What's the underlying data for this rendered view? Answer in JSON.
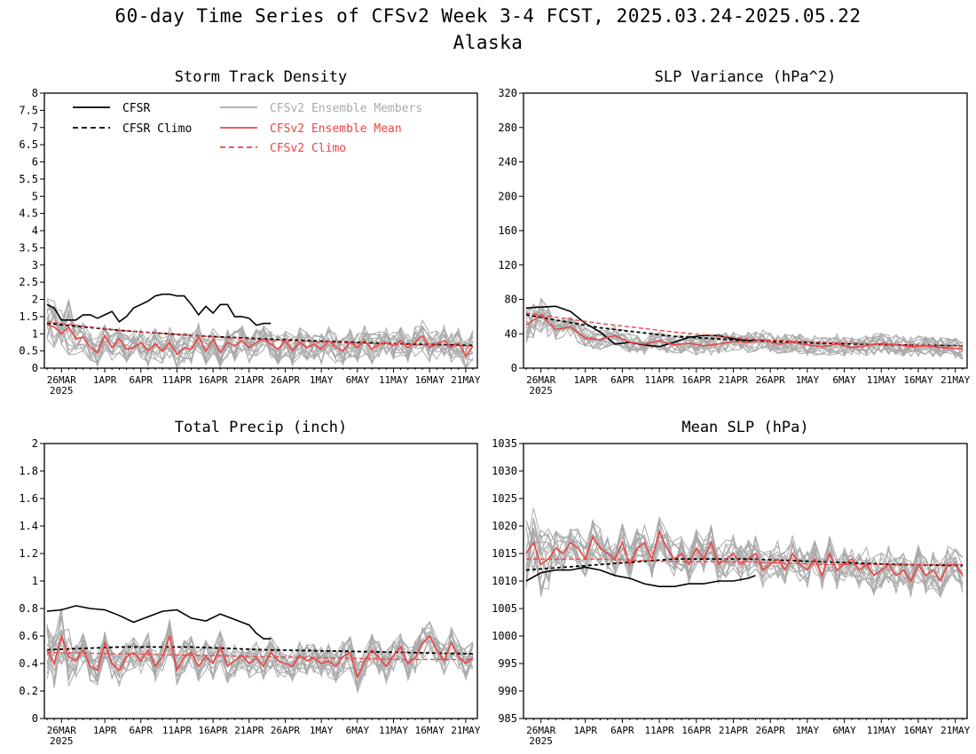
{
  "title": "60-day Time Series of CFSv2 Week 3-4 FCST, 2025.03.24-2025.05.22",
  "subtitle": "Alaska",
  "colors": {
    "cfsr": "#000000",
    "ens_member": "#aaaaaa",
    "ens_mean": "#ee4444",
    "cfsv2_climo": "#ee4444"
  },
  "legend": [
    {
      "label": "CFSR",
      "style": "solid",
      "color": "#000000"
    },
    {
      "label": "CFSR Climo",
      "style": "dashed",
      "color": "#000000"
    },
    {
      "label": "CFSv2 Ensemble Members",
      "style": "solid",
      "color": "#aaaaaa"
    },
    {
      "label": "CFSv2 Ensemble Mean",
      "style": "solid",
      "color": "#ee4444"
    },
    {
      "label": "CFSv2 Climo",
      "style": "dashed",
      "color": "#ee4444"
    }
  ],
  "x_ticks": [
    "26MAR",
    "1APR",
    "6APR",
    "11APR",
    "16APR",
    "21APR",
    "26APR",
    "1MAY",
    "6MAY",
    "11MAY",
    "16MAY",
    "21MAY"
  ],
  "x_tick_days": [
    2,
    8,
    13,
    18,
    23,
    28,
    33,
    38,
    43,
    48,
    53,
    58
  ],
  "x_year_label": "2025",
  "chart_data": [
    {
      "type": "line",
      "title": "Storm Track Density",
      "ylim": [
        0,
        8
      ],
      "yticks": [
        "0",
        "0.5",
        "1",
        "1.5",
        "2",
        "2.5",
        "3",
        "3.5",
        "4",
        "4.5",
        "5",
        "5.5",
        "6",
        "6.5",
        "7",
        "7.5",
        "8"
      ],
      "ytick_values": [
        0,
        0.5,
        1,
        1.5,
        2,
        2.5,
        3,
        3.5,
        4,
        4.5,
        5,
        5.5,
        6,
        6.5,
        7,
        7.5,
        8
      ],
      "series": [
        {
          "name": "CFSR",
          "x": [
            0,
            1,
            2,
            3,
            4,
            5,
            6,
            7,
            8,
            9,
            10,
            11,
            12,
            13,
            14,
            15,
            16,
            17,
            18,
            19,
            20,
            21,
            22,
            23,
            24,
            25,
            26,
            27,
            28,
            29,
            30,
            31
          ],
          "values": [
            1.85,
            1.75,
            1.4,
            1.4,
            1.4,
            1.55,
            1.55,
            1.45,
            1.55,
            1.65,
            1.35,
            1.5,
            1.75,
            1.85,
            1.95,
            2.1,
            2.15,
            2.15,
            2.1,
            2.1,
            1.85,
            1.55,
            1.8,
            1.6,
            1.85,
            1.85,
            1.5,
            1.5,
            1.45,
            1.25,
            1.3,
            1.3
          ]
        },
        {
          "name": "CFSR Climo",
          "x": [
            0,
            10,
            20,
            30,
            40,
            50,
            59
          ],
          "values": [
            1.3,
            1.1,
            0.95,
            0.85,
            0.77,
            0.7,
            0.66
          ]
        },
        {
          "name": "CFSv2 Ensemble Mean",
          "x": [
            0,
            1,
            2,
            3,
            4,
            5,
            6,
            7,
            8,
            9,
            10,
            11,
            12,
            13,
            14,
            15,
            16,
            17,
            18,
            19,
            20,
            21,
            22,
            23,
            24,
            25,
            26,
            27,
            28,
            29,
            30,
            31,
            32,
            33,
            34,
            35,
            36,
            37,
            38,
            39,
            40,
            41,
            42,
            43,
            44,
            45,
            46,
            47,
            48,
            49,
            50,
            51,
            52,
            53,
            54,
            55,
            56,
            57,
            58,
            59
          ],
          "values": [
            1.25,
            1.2,
            1.0,
            1.2,
            0.85,
            0.9,
            0.6,
            0.45,
            0.95,
            0.6,
            0.85,
            0.55,
            0.6,
            0.75,
            0.5,
            0.7,
            0.5,
            0.75,
            0.4,
            0.6,
            0.55,
            0.9,
            0.5,
            0.85,
            0.45,
            0.75,
            0.65,
            0.8,
            0.6,
            0.75,
            0.85,
            0.7,
            0.55,
            0.8,
            0.5,
            0.75,
            0.6,
            0.7,
            0.55,
            0.8,
            0.6,
            0.5,
            0.75,
            0.6,
            0.8,
            0.55,
            0.7,
            0.75,
            0.65,
            0.8,
            0.6,
            0.75,
            0.95,
            0.6,
            0.7,
            0.8,
            0.6,
            0.75,
            0.35,
            0.65
          ]
        },
        {
          "name": "CFSv2 Climo",
          "x": [
            0,
            10,
            20,
            30,
            40,
            50,
            59
          ],
          "values": [
            1.35,
            1.1,
            0.95,
            0.82,
            0.74,
            0.68,
            0.64
          ]
        }
      ]
    },
    {
      "type": "line",
      "title": "SLP Variance (hPa^2)",
      "ylim": [
        0,
        320
      ],
      "yticks": [
        "0",
        "40",
        "80",
        "120",
        "160",
        "200",
        "240",
        "280",
        "320"
      ],
      "ytick_values": [
        0,
        40,
        80,
        120,
        160,
        200,
        240,
        280,
        320
      ],
      "series": [
        {
          "name": "CFSR",
          "x": [
            0,
            2,
            4,
            6,
            8,
            10,
            12,
            14,
            16,
            18,
            20,
            22,
            24,
            26,
            28,
            30,
            31
          ],
          "values": [
            70,
            71,
            72,
            66,
            52,
            42,
            28,
            30,
            27,
            25,
            30,
            36,
            38,
            38,
            34,
            32,
            33
          ]
        },
        {
          "name": "CFSR Climo",
          "x": [
            0,
            10,
            20,
            30,
            40,
            50,
            59
          ],
          "values": [
            62,
            47,
            37,
            32,
            29,
            27,
            26
          ]
        },
        {
          "name": "CFSv2 Ensemble Mean",
          "x": [
            0,
            2,
            4,
            6,
            8,
            10,
            12,
            14,
            16,
            18,
            20,
            22,
            24,
            26,
            28,
            30,
            32,
            34,
            36,
            38,
            40,
            42,
            44,
            46,
            48,
            50,
            52,
            54,
            56,
            58,
            59
          ],
          "values": [
            50,
            62,
            45,
            48,
            35,
            33,
            38,
            30,
            28,
            32,
            27,
            29,
            26,
            28,
            31,
            30,
            33,
            28,
            30,
            27,
            25,
            28,
            24,
            26,
            29,
            27,
            25,
            26,
            24,
            23,
            22
          ]
        },
        {
          "name": "CFSv2 Climo",
          "x": [
            0,
            10,
            20,
            30,
            40,
            50,
            59
          ],
          "values": [
            64,
            52,
            42,
            34,
            30,
            27,
            26
          ]
        }
      ]
    },
    {
      "type": "line",
      "title": "Total Precip (inch)",
      "ylim": [
        0,
        2
      ],
      "yticks": [
        "0",
        "0.2",
        "0.4",
        "0.6",
        "0.8",
        "1",
        "1.2",
        "1.4",
        "1.6",
        "1.8",
        "2"
      ],
      "ytick_values": [
        0,
        0.2,
        0.4,
        0.6,
        0.8,
        1,
        1.2,
        1.4,
        1.6,
        1.8,
        2
      ],
      "series": [
        {
          "name": "CFSR",
          "x": [
            0,
            2,
            4,
            6,
            8,
            10,
            12,
            14,
            16,
            18,
            20,
            22,
            24,
            26,
            28,
            29,
            30,
            31
          ],
          "values": [
            0.78,
            0.79,
            0.82,
            0.8,
            0.79,
            0.75,
            0.7,
            0.74,
            0.78,
            0.79,
            0.73,
            0.71,
            0.76,
            0.72,
            0.68,
            0.62,
            0.58,
            0.58
          ]
        },
        {
          "name": "CFSR Climo",
          "x": [
            0,
            10,
            20,
            30,
            40,
            50,
            59
          ],
          "values": [
            0.5,
            0.52,
            0.52,
            0.5,
            0.49,
            0.48,
            0.47
          ]
        },
        {
          "name": "CFSv2 Ensemble Mean",
          "x": [
            0,
            1,
            2,
            3,
            4,
            5,
            6,
            7,
            8,
            9,
            10,
            11,
            12,
            13,
            14,
            15,
            16,
            17,
            18,
            19,
            20,
            21,
            22,
            23,
            24,
            25,
            26,
            27,
            28,
            29,
            30,
            31,
            32,
            33,
            34,
            35,
            36,
            37,
            38,
            39,
            40,
            41,
            42,
            43,
            44,
            45,
            46,
            47,
            48,
            49,
            50,
            51,
            52,
            53,
            54,
            55,
            56,
            57,
            58,
            59
          ],
          "values": [
            0.5,
            0.4,
            0.6,
            0.45,
            0.42,
            0.5,
            0.38,
            0.35,
            0.55,
            0.4,
            0.35,
            0.45,
            0.48,
            0.42,
            0.5,
            0.38,
            0.45,
            0.6,
            0.35,
            0.45,
            0.48,
            0.38,
            0.45,
            0.4,
            0.52,
            0.38,
            0.42,
            0.46,
            0.4,
            0.44,
            0.38,
            0.48,
            0.42,
            0.4,
            0.38,
            0.46,
            0.42,
            0.44,
            0.4,
            0.42,
            0.38,
            0.45,
            0.48,
            0.3,
            0.42,
            0.5,
            0.44,
            0.38,
            0.46,
            0.52,
            0.4,
            0.44,
            0.55,
            0.6,
            0.5,
            0.42,
            0.55,
            0.45,
            0.4,
            0.44
          ]
        },
        {
          "name": "CFSv2 Climo",
          "x": [
            0,
            10,
            20,
            30,
            40,
            50,
            59
          ],
          "values": [
            0.48,
            0.47,
            0.46,
            0.45,
            0.44,
            0.43,
            0.43
          ]
        }
      ]
    },
    {
      "type": "line",
      "title": "Mean SLP (hPa)",
      "ylim": [
        985,
        1035
      ],
      "yticks": [
        "985",
        "990",
        "995",
        "1000",
        "1005",
        "1010",
        "1015",
        "1020",
        "1025",
        "1030",
        "1035"
      ],
      "ytick_values": [
        985,
        990,
        995,
        1000,
        1005,
        1010,
        1015,
        1020,
        1025,
        1030,
        1035
      ],
      "series": [
        {
          "name": "CFSR",
          "x": [
            0,
            2,
            4,
            6,
            8,
            10,
            12,
            14,
            16,
            18,
            20,
            22,
            24,
            26,
            28,
            30,
            31
          ],
          "values": [
            1010,
            1011.5,
            1012,
            1012,
            1012.5,
            1012,
            1011,
            1010.5,
            1009.5,
            1009,
            1009,
            1009.5,
            1009.5,
            1010,
            1010,
            1010.5,
            1011
          ]
        },
        {
          "name": "CFSR Climo",
          "x": [
            0,
            10,
            20,
            30,
            40,
            50,
            59
          ],
          "values": [
            1012,
            1013,
            1014,
            1014,
            1013.5,
            1013,
            1012.8
          ]
        },
        {
          "name": "CFSv2 Ensemble Mean",
          "x": [
            0,
            1,
            2,
            3,
            4,
            5,
            6,
            7,
            8,
            9,
            10,
            11,
            12,
            13,
            14,
            15,
            16,
            17,
            18,
            19,
            20,
            21,
            22,
            23,
            24,
            25,
            26,
            27,
            28,
            29,
            30,
            31,
            32,
            33,
            34,
            35,
            36,
            37,
            38,
            39,
            40,
            41,
            42,
            43,
            44,
            45,
            46,
            47,
            48,
            49,
            50,
            51,
            52,
            53,
            54,
            55,
            56,
            57,
            58,
            59
          ],
          "values": [
            1015,
            1017,
            1013,
            1014,
            1016,
            1015,
            1017,
            1016,
            1014,
            1018,
            1016,
            1015,
            1014,
            1017,
            1013,
            1016,
            1017,
            1014,
            1019,
            1016,
            1014,
            1015,
            1013,
            1016,
            1014,
            1017,
            1013,
            1014,
            1015,
            1013,
            1014,
            1015,
            1012,
            1013,
            1014,
            1012,
            1015,
            1013,
            1012,
            1014,
            1011,
            1015,
            1012,
            1013,
            1014,
            1012,
            1013,
            1011,
            1012,
            1013,
            1011,
            1012,
            1010,
            1013,
            1011,
            1012,
            1010,
            1013,
            1013,
            1011
          ]
        },
        {
          "name": "CFSv2 Climo",
          "x": [
            0,
            10,
            20,
            30,
            40,
            50,
            59
          ],
          "values": [
            1014,
            1014,
            1013.5,
            1013.5,
            1013,
            1013,
            1013
          ]
        }
      ]
    }
  ]
}
